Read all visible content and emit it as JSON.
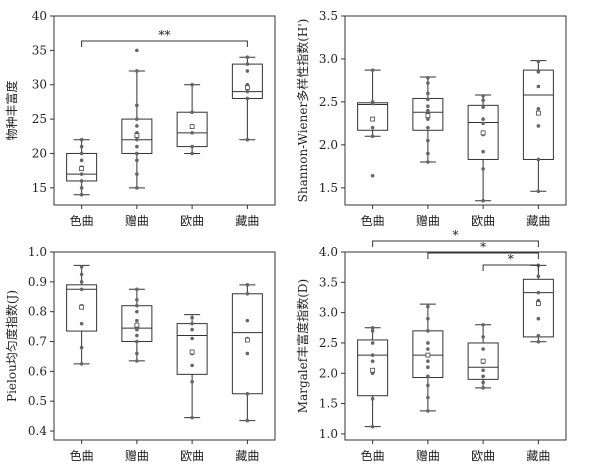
{
  "chart_data": [
    {
      "type": "box",
      "ylabel": "物种丰富度",
      "categories": [
        "色曲",
        "赠曲",
        "欧曲",
        "藏曲"
      ],
      "ylim": [
        12.5,
        40
      ],
      "yticks": [
        15,
        20,
        25,
        30,
        35,
        40
      ],
      "ytick_labels": [
        "15",
        "20",
        "25",
        "30",
        "35",
        "40"
      ],
      "boxes": [
        {
          "min": 14,
          "q1": 16,
          "median": 17,
          "q3": 20,
          "max": 22,
          "mean": 17.8,
          "points": [
            14,
            15,
            16,
            17,
            18,
            19,
            20,
            21,
            22
          ]
        },
        {
          "min": 15,
          "q1": 20,
          "median": 22,
          "q3": 25,
          "max": 32,
          "mean": 22.6,
          "points": [
            15,
            17,
            19,
            20,
            21,
            22,
            23,
            24,
            25,
            27,
            32,
            35
          ]
        },
        {
          "min": 20,
          "q1": 21,
          "median": 23,
          "q3": 26,
          "max": 30,
          "mean": 23.9,
          "points": [
            20,
            21,
            23,
            24,
            26,
            30
          ]
        },
        {
          "min": 22,
          "q1": 28,
          "median": 29,
          "q3": 33,
          "max": 34,
          "mean": 29.6,
          "points": [
            22,
            28,
            29,
            30,
            32,
            33,
            34
          ]
        }
      ],
      "significance": [
        {
          "from": 0,
          "to": 3,
          "label": "**"
        }
      ]
    },
    {
      "type": "box",
      "ylabel": "Shannon-Wiener多样性指数(H')",
      "categories": [
        "色曲",
        "赠曲",
        "欧曲",
        "藏曲"
      ],
      "ylim": [
        1.3,
        3.5
      ],
      "yticks": [
        1.5,
        2.0,
        2.5,
        3.0,
        3.5
      ],
      "ytick_labels": [
        "1.5",
        "2.0",
        "2.5",
        "3.0",
        "3.5"
      ],
      "boxes": [
        {
          "min": 2.1,
          "q1": 2.17,
          "median": 2.47,
          "q3": 2.49,
          "max": 2.87,
          "mean": 2.3,
          "points": [
            1.64,
            2.1,
            2.2,
            2.3,
            2.48,
            2.5,
            2.87
          ]
        },
        {
          "min": 1.8,
          "q1": 2.17,
          "median": 2.38,
          "q3": 2.54,
          "max": 2.79,
          "mean": 2.34,
          "points": [
            1.8,
            1.9,
            2.05,
            2.2,
            2.3,
            2.36,
            2.4,
            2.45,
            2.53,
            2.6,
            2.72,
            2.78
          ]
        },
        {
          "min": 1.35,
          "q1": 1.83,
          "median": 2.26,
          "q3": 2.46,
          "max": 2.58,
          "mean": 2.14,
          "points": [
            1.35,
            1.72,
            1.92,
            2.12,
            2.25,
            2.3,
            2.44,
            2.52,
            2.57
          ]
        },
        {
          "min": 1.46,
          "q1": 1.83,
          "median": 2.58,
          "q3": 2.87,
          "max": 2.98,
          "mean": 2.37,
          "points": [
            1.46,
            1.83,
            2.22,
            2.42,
            2.68,
            2.85,
            2.97
          ]
        }
      ]
    },
    {
      "type": "box",
      "ylabel": "Pielou均匀度指数(J)",
      "categories": [
        "色曲",
        "赠曲",
        "欧曲",
        "藏曲"
      ],
      "ylim": [
        0.37,
        1.0
      ],
      "yticks": [
        0.4,
        0.5,
        0.6,
        0.7,
        0.8,
        0.9,
        1.0
      ],
      "ytick_labels": [
        "0.4",
        "0.5",
        "0.6",
        "0.7",
        "0.8",
        "0.9",
        "1.0"
      ],
      "boxes": [
        {
          "min": 0.625,
          "q1": 0.735,
          "median": 0.875,
          "q3": 0.89,
          "max": 0.955,
          "mean": 0.815,
          "points": [
            0.625,
            0.68,
            0.76,
            0.82,
            0.875,
            0.9,
            0.925,
            0.95
          ]
        },
        {
          "min": 0.635,
          "q1": 0.7,
          "median": 0.745,
          "q3": 0.82,
          "max": 0.875,
          "mean": 0.755,
          "points": [
            0.635,
            0.66,
            0.7,
            0.72,
            0.74,
            0.75,
            0.77,
            0.8,
            0.82,
            0.84,
            0.875
          ]
        },
        {
          "min": 0.445,
          "q1": 0.59,
          "median": 0.72,
          "q3": 0.76,
          "max": 0.79,
          "mean": 0.665,
          "points": [
            0.445,
            0.565,
            0.62,
            0.66,
            0.71,
            0.74,
            0.76,
            0.78
          ]
        },
        {
          "min": 0.435,
          "q1": 0.525,
          "median": 0.73,
          "q3": 0.86,
          "max": 0.89,
          "mean": 0.705,
          "points": [
            0.435,
            0.525,
            0.66,
            0.71,
            0.77,
            0.86,
            0.89
          ]
        }
      ]
    },
    {
      "type": "box",
      "ylabel": "Margalef丰富度指数(D)",
      "categories": [
        "色曲",
        "赠曲",
        "欧曲",
        "藏曲"
      ],
      "ylim": [
        0.9,
        4.0
      ],
      "yticks": [
        1.0,
        1.5,
        2.0,
        2.5,
        3.0,
        3.5,
        4.0
      ],
      "ytick_labels": [
        "1.0",
        "1.5",
        "2.0",
        "2.5",
        "3.0",
        "3.5",
        "4.0"
      ],
      "boxes": [
        {
          "min": 1.12,
          "q1": 1.63,
          "median": 2.3,
          "q3": 2.55,
          "max": 2.75,
          "mean": 2.05,
          "points": [
            1.12,
            1.58,
            2.0,
            2.2,
            2.3,
            2.5,
            2.7,
            2.75
          ]
        },
        {
          "min": 1.38,
          "q1": 1.93,
          "median": 2.3,
          "q3": 2.7,
          "max": 3.14,
          "mean": 2.3,
          "points": [
            1.38,
            1.6,
            1.8,
            1.95,
            2.1,
            2.2,
            2.3,
            2.4,
            2.5,
            2.7,
            2.9,
            3.1
          ]
        },
        {
          "min": 1.76,
          "q1": 1.9,
          "median": 2.1,
          "q3": 2.5,
          "max": 2.8,
          "mean": 2.2,
          "points": [
            1.76,
            1.85,
            1.95,
            2.05,
            2.18,
            2.4,
            2.6,
            2.8
          ]
        },
        {
          "min": 2.52,
          "q1": 2.6,
          "median": 3.33,
          "q3": 3.55,
          "max": 3.78,
          "mean": 3.15,
          "points": [
            2.52,
            2.62,
            2.9,
            3.2,
            3.33,
            3.6,
            3.78
          ]
        }
      ],
      "significance": [
        {
          "from": 0,
          "to": 3,
          "label": "*"
        },
        {
          "from": 1,
          "to": 3,
          "label": "*"
        },
        {
          "from": 2,
          "to": 3,
          "label": "*"
        }
      ]
    }
  ]
}
